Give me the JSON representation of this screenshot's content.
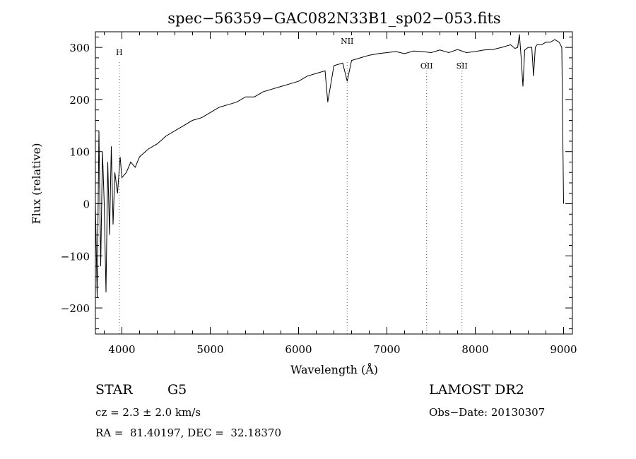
{
  "chart_data": {
    "type": "line",
    "title": "spec−56359−GAC082N33B1_sp02−053.fits",
    "xlabel": "Wavelength (Å)",
    "ylabel": "Flux (relative)",
    "xlim": [
      3700,
      9100
    ],
    "ylim": [
      -250,
      330
    ],
    "x_ticks": [
      4000,
      5000,
      6000,
      7000,
      8000,
      9000
    ],
    "x_tick_labels": [
      "4000",
      "5000",
      "6000",
      "7000",
      "8000",
      "9000"
    ],
    "y_ticks": [
      -200,
      -100,
      0,
      100,
      200,
      300
    ],
    "y_tick_labels": [
      "−200",
      "−100",
      "0",
      "100",
      "200",
      "300"
    ],
    "grid": false,
    "line_color": "#000000",
    "series": [
      {
        "x": [
          3700,
          3720,
          3740,
          3760,
          3780,
          3800,
          3820,
          3840,
          3860,
          3880,
          3900,
          3920,
          3950,
          3980,
          4000,
          4050,
          4100,
          4150,
          4200,
          4300,
          4400,
          4500,
          4600,
          4700,
          4800,
          4900,
          5000,
          5100,
          5200,
          5300,
          5400,
          5500,
          5600,
          5700,
          5800,
          5900,
          6000,
          6100,
          6200,
          6300,
          6330,
          6400,
          6500,
          6550,
          6600,
          6700,
          6800,
          6900,
          7000,
          7100,
          7200,
          7300,
          7400,
          7500,
          7600,
          7700,
          7800,
          7900,
          8000,
          8100,
          8200,
          8300,
          8400,
          8450,
          8480,
          8500,
          8520,
          8540,
          8560,
          8600,
          8640,
          8660,
          8680,
          8700,
          8750,
          8800,
          8850,
          8900,
          8950,
          8980,
          9000
        ],
        "y": [
          0,
          -180,
          140,
          -120,
          100,
          0,
          -170,
          80,
          -60,
          110,
          -40,
          60,
          20,
          90,
          50,
          60,
          80,
          70,
          90,
          105,
          115,
          130,
          140,
          150,
          160,
          165,
          175,
          185,
          190,
          195,
          205,
          205,
          215,
          220,
          225,
          230,
          235,
          245,
          250,
          255,
          195,
          265,
          270,
          235,
          275,
          280,
          285,
          288,
          290,
          292,
          288,
          293,
          292,
          290,
          295,
          290,
          296,
          290,
          292,
          295,
          296,
          300,
          305,
          298,
          300,
          325,
          280,
          225,
          295,
          300,
          300,
          245,
          300,
          305,
          305,
          310,
          310,
          315,
          310,
          300,
          0
        ]
      }
    ],
    "lines": [
      {
        "label": "H",
        "x": 3970
      },
      {
        "label": "NII",
        "x": 6550
      },
      {
        "label": "OII",
        "x": 7450
      },
      {
        "label": "SII",
        "x": 7850
      }
    ]
  },
  "info": {
    "class_label": "STAR",
    "subclass_label": "G5",
    "survey": "LAMOST DR2",
    "velocity": "cz = 2.3 ± 2.0 km/s",
    "obs_date": "Obs−Date: 20130307",
    "coords": "RA =  81.40197, DEC =  32.18370"
  }
}
